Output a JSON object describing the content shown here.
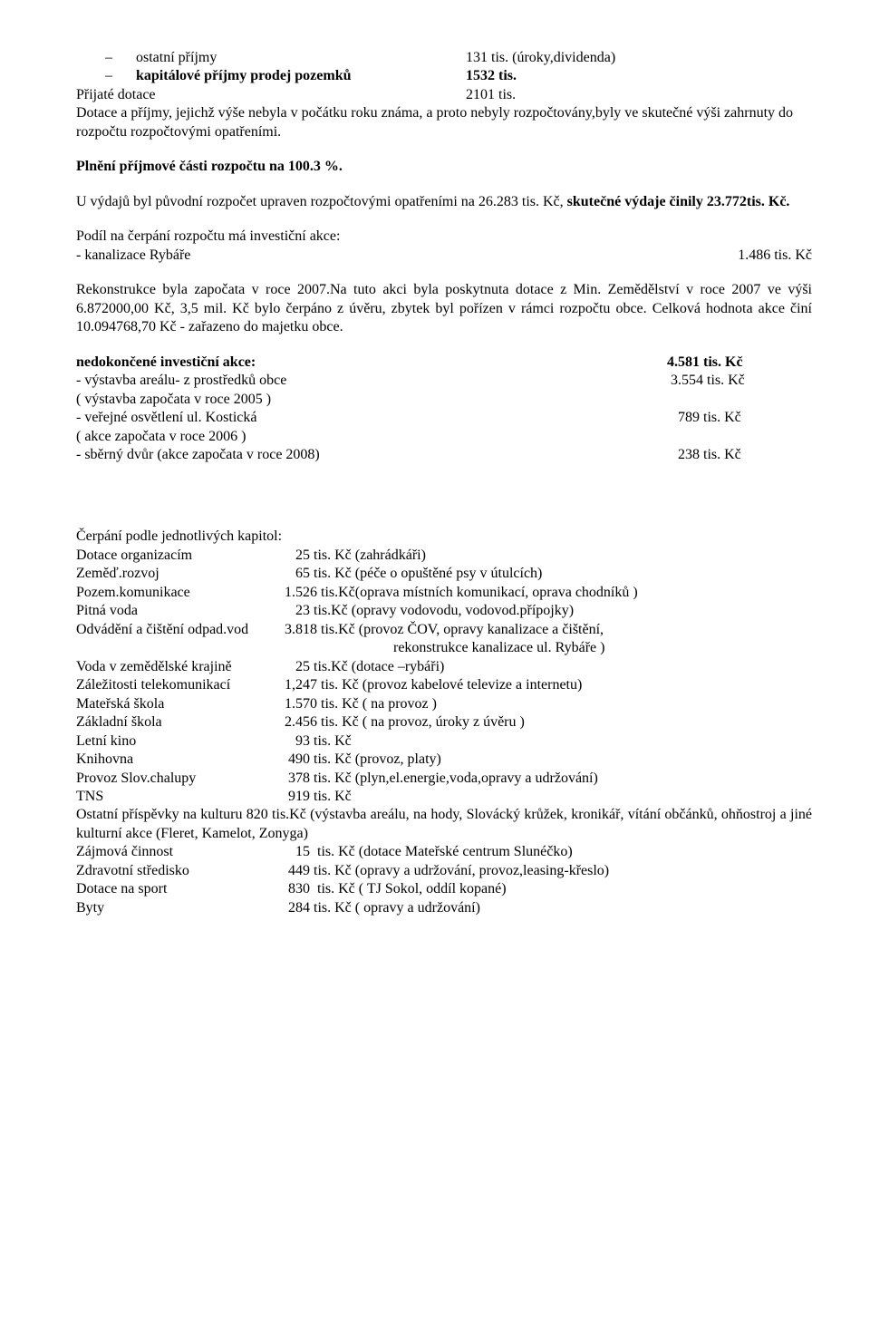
{
  "top": {
    "line1_label": "ostatní příjmy",
    "line1_val": "131 tis. (úroky,dividenda)",
    "line2_label": "kapitálové příjmy prodej pozemků",
    "line2_val": "1532 tis.",
    "line3_label": "Přijaté dotace",
    "line3_val": "2101 tis."
  },
  "para1": "Dotace a příjmy, jejichž výše nebyla v počátku roku známa, a proto nebyly rozpočtovány,byly ve skutečné výši zahrnuty do rozpočtu rozpočtovými opatřeními.",
  "plneni": "Plnění příjmové části rozpočtu na 100.3 %.",
  "vydaje_a": "U výdajů byl původní rozpočet upraven rozpočtovými opatřeními na 26.283 tis. Kč, ",
  "vydaje_b": "skutečné výdaje činily 23.772tis. Kč.",
  "podil_head": "Podíl na čerpání rozpočtu má investiční akce:",
  "podil_row": {
    "label": "- kanalizace Rybáře",
    "val": "1.486 tis. Kč"
  },
  "rekon": "Rekonstrukce byla započata v roce 2007.Na tuto akci byla poskytnuta dotace z Min. Zemědělství v roce 2007 ve výši 6.872000,00 Kč, 3,5 mil. Kč bylo čerpáno z úvěru, zbytek byl pořízen v rámci rozpočtu obce. Celková hodnota akce činí 10.094768,70 Kč - zařazeno do majetku obce.",
  "invest": {
    "title": "nedokončené investiční akce:",
    "title_val": "4.581 tis. Kč",
    "rows": [
      {
        "label": "- výstavba areálu-  z prostředků obce",
        "note": "( výstavba započata v roce 2005 )",
        "val": " 3.554 tis. Kč"
      },
      {
        "label": "- veřejné osvětlení ul. Kostická",
        "note": "( akce započata v roce 2006 )",
        "val": "   789 tis. Kč"
      },
      {
        "label": "- sběrný dvůr (akce započata v roce 2008)",
        "note": "",
        "val": "   238 tis. Kč"
      }
    ]
  },
  "chapters_title": "Čerpání podle jednotlivých kapitol:",
  "chapters": [
    {
      "label": "Dotace organizacím",
      "val": "   25 tis. Kč (zahrádkáři)"
    },
    {
      "label": "Zeměď.rozvoj",
      "val": "   65 tis. Kč (péče o opuštěné psy v útulcích)"
    },
    {
      "label": "Pozem.komunikace",
      "val": "1.526 tis.Kč(oprava místních komunikací, oprava chodníků )"
    },
    {
      "label": "Pitná voda",
      "val": "   23 tis.Kč (opravy vodovodu, vodovod.přípojky)"
    },
    {
      "label": "Odvádění a čištění odpad.vod",
      "val": "3.818 tis.Kč (provoz ČOV, opravy kanalizace a čištění,"
    },
    {
      "label": "",
      "val": "                              rekonstrukce kanalizace ul. Rybáře )"
    },
    {
      "label": "Voda v zemědělské krajině",
      "val": "   25 tis.Kč (dotace –rybáři)"
    },
    {
      "label": "Záležitosti telekomunikací",
      "val": "1,247 tis. Kč (provoz kabelové televize a internetu)"
    },
    {
      "label": "Mateřská škola",
      "val": "1.570 tis. Kč ( na provoz )"
    },
    {
      "label": "Základní škola",
      "val": "2.456 tis. Kč ( na provoz, úroky z úvěru )"
    },
    {
      "label": "Letní kino",
      "val": "   93 tis. Kč"
    },
    {
      "label": "Knihovna",
      "val": " 490 tis. Kč (provoz, platy)"
    },
    {
      "label": "Provoz Slov.chalupy",
      "val": " 378 tis. Kč (plyn,el.energie,voda,opravy a udržování)"
    },
    {
      "label": "TNS",
      "val": " 919 tis. Kč"
    }
  ],
  "ostatni": "Ostatní  příspěvky  na  kulturu         820  tis.Kč  (výstavba  areálu,  na  hody,  Slovácký  krůžek, kronikář, vítání občánků, ohňostroj a jiné kulturní akce (Fleret, Kamelot, Zonyga)",
  "chapters2": [
    {
      "label": "Zájmová činnost",
      "val": "   15  tis. Kč (dotace Mateřské centrum Slunéčko)"
    },
    {
      "label": "Zdravotní středisko",
      "val": " 449 tis. Kč (opravy a udržování, provoz,leasing-křeslo)"
    },
    {
      "label": "Dotace na sport",
      "val": " 830  tis. Kč ( TJ Sokol, oddíl kopané)"
    },
    {
      "label": "Byty",
      "val": " 284 tis. Kč ( opravy a udržování)"
    }
  ]
}
